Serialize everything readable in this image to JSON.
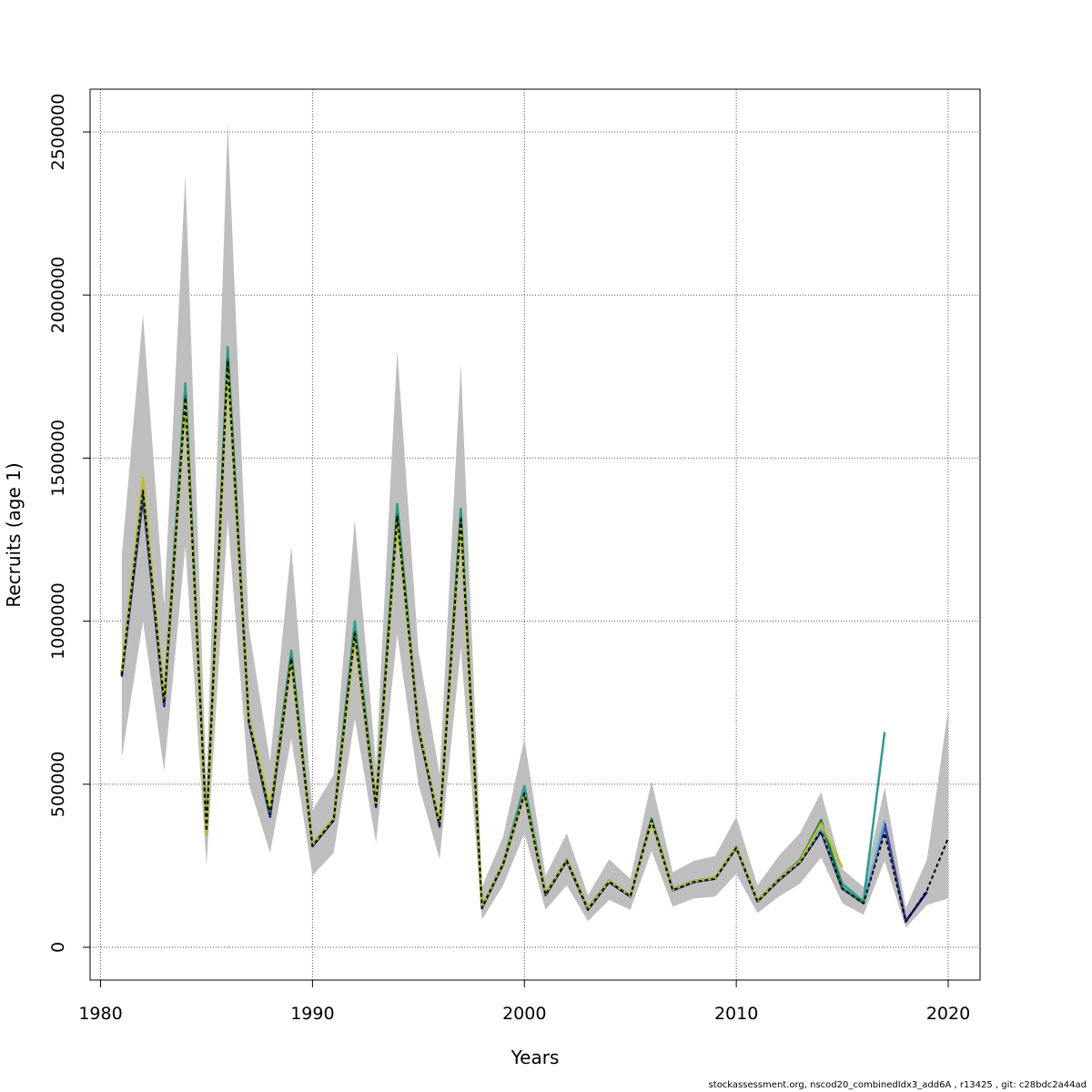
{
  "chart_data": {
    "type": "line",
    "title": "",
    "xlabel": "Years",
    "ylabel": "Recruits (age 1)",
    "xlim": [
      1980,
      2020
    ],
    "ylim": [
      0,
      2500000
    ],
    "xticks": [
      1980,
      1990,
      2000,
      2010,
      2020
    ],
    "yticks": [
      0,
      500000,
      1000000,
      1500000,
      2000000,
      2500000
    ],
    "grid": true,
    "footnote": "stockassessment.org, nscod20_combinedIdx3_add6A , r13425 , git: c28bdc2a44ad",
    "band": {
      "color": "#bebebe",
      "x": [
        1981,
        1982,
        1983,
        1984,
        1985,
        1986,
        1987,
        1988,
        1989,
        1990,
        1991,
        1992,
        1993,
        1994,
        1995,
        1996,
        1997,
        1998,
        1999,
        2000,
        2001,
        2002,
        2003,
        2004,
        2005,
        2006,
        2007,
        2008,
        2009,
        2010,
        2011,
        2012,
        2013,
        2014,
        2015,
        2016,
        2017,
        2018,
        2019,
        2020
      ],
      "lower": [
        580000,
        1000000,
        540000,
        1230000,
        250000,
        1310000,
        500000,
        290000,
        640000,
        220000,
        290000,
        700000,
        320000,
        960000,
        500000,
        270000,
        920000,
        85000,
        190000,
        350000,
        115000,
        190000,
        80000,
        145000,
        115000,
        295000,
        125000,
        150000,
        155000,
        225000,
        105000,
        155000,
        195000,
        275000,
        135000,
        100000,
        265000,
        60000,
        130000,
        150000
      ],
      "upper": [
        1200000,
        1940000,
        1050000,
        2370000,
        500000,
        2530000,
        980000,
        570000,
        1230000,
        420000,
        530000,
        1310000,
        560000,
        1830000,
        910000,
        530000,
        1790000,
        185000,
        340000,
        640000,
        220000,
        350000,
        160000,
        270000,
        210000,
        510000,
        230000,
        265000,
        280000,
        400000,
        190000,
        280000,
        350000,
        475000,
        240000,
        185000,
        490000,
        120000,
        270000,
        730000
      ]
    },
    "series": [
      {
        "color": "#0d0887",
        "dashed": false,
        "x": [
          1981,
          1982,
          1983,
          1984,
          1985,
          1986,
          1987,
          1988,
          1989,
          1990,
          1991,
          1992,
          1993,
          1994,
          1995,
          1996,
          1997,
          1998,
          1999,
          2000,
          2001,
          2002,
          2003,
          2004,
          2005,
          2006,
          2007,
          2008,
          2009,
          2010,
          2011,
          2012,
          2013,
          2014,
          2015,
          2016,
          2017,
          2018,
          2019
        ],
        "values": [
          830000,
          1380000,
          740000,
          1680000,
          360000,
          1790000,
          690000,
          400000,
          880000,
          310000,
          390000,
          960000,
          430000,
          1320000,
          670000,
          370000,
          1310000,
          120000,
          255000,
          470000,
          160000,
          265000,
          115000,
          200000,
          155000,
          390000,
          175000,
          200000,
          210000,
          305000,
          140000,
          205000,
          260000,
          355000,
          180000,
          135000,
          380000,
          80000,
          170000
        ]
      },
      {
        "color": "#3b4ca8",
        "dashed": false,
        "x": [
          1981,
          1982,
          1983,
          1984,
          1985,
          1986,
          1987,
          1988,
          1989,
          1990,
          1991,
          1992,
          1993,
          1994,
          1995,
          1996,
          1997,
          1998,
          1999,
          2000,
          2001,
          2002,
          2003,
          2004,
          2005,
          2006,
          2007,
          2008,
          2009,
          2010,
          2011,
          2012,
          2013,
          2014,
          2015,
          2016,
          2017,
          2018
        ],
        "values": [
          835000,
          1395000,
          745000,
          1690000,
          362000,
          1800000,
          695000,
          405000,
          885000,
          312000,
          392000,
          965000,
          432000,
          1325000,
          672000,
          372000,
          1315000,
          122000,
          257000,
          472000,
          162000,
          267000,
          117000,
          202000,
          156000,
          392000,
          176000,
          201000,
          211000,
          307000,
          141000,
          207000,
          262000,
          360000,
          182000,
          136000,
          372000,
          82000
        ]
      },
      {
        "color": "#6baed6",
        "dashed": false,
        "x": [
          1981,
          1982,
          1983,
          1984,
          1985,
          1986,
          1987,
          1988,
          1989,
          1990,
          1991,
          1992,
          1993,
          1994,
          1995,
          1996,
          1997,
          1998,
          1999,
          2000,
          2001,
          2002,
          2003,
          2004,
          2005,
          2006,
          2007,
          2008,
          2009,
          2010,
          2011,
          2012,
          2013,
          2014,
          2015,
          2016,
          2017
        ],
        "values": [
          840000,
          1410000,
          752000,
          1700000,
          350000,
          1810000,
          700000,
          410000,
          890000,
          314000,
          394000,
          970000,
          436000,
          1330000,
          675000,
          374000,
          1320000,
          123000,
          258000,
          475000,
          163000,
          268000,
          118000,
          203000,
          157000,
          393000,
          177000,
          202000,
          212000,
          308000,
          142000,
          208000,
          263000,
          365000,
          185000,
          140000,
          390000
        ]
      },
      {
        "color": "#2a9d8f",
        "dashed": false,
        "x": [
          1981,
          1982,
          1983,
          1984,
          1985,
          1986,
          1987,
          1988,
          1989,
          1990,
          1991,
          1992,
          1993,
          1994,
          1995,
          1996,
          1997,
          1998,
          1999,
          2000,
          2001,
          2002,
          2003,
          2004,
          2005,
          2006,
          2007,
          2008,
          2009,
          2010,
          2011,
          2012,
          2013,
          2014,
          2015,
          2016,
          2017
        ],
        "values": [
          845000,
          1430000,
          760000,
          1730000,
          355000,
          1840000,
          705000,
          420000,
          910000,
          316000,
          396000,
          1000000,
          445000,
          1360000,
          680000,
          378000,
          1345000,
          125000,
          260000,
          495000,
          165000,
          270000,
          120000,
          205000,
          158000,
          395000,
          178000,
          203000,
          213000,
          310000,
          143000,
          210000,
          268000,
          385000,
          195000,
          140000,
          660000
        ]
      },
      {
        "color": "#1a7a3a",
        "dashed": false,
        "x": [
          1981,
          1982,
          1983,
          1984,
          1985,
          1986,
          1987,
          1988,
          1989,
          1990,
          1991,
          1992,
          1993,
          1994,
          1995,
          1996,
          1997,
          1998,
          1999,
          2000,
          2001,
          2002,
          2003,
          2004,
          2005,
          2006,
          2007,
          2008,
          2009,
          2010,
          2011,
          2012,
          2013,
          2014,
          2015,
          2016
        ],
        "values": [
          838000,
          1420000,
          755000,
          1690000,
          358000,
          1805000,
          698000,
          412000,
          887000,
          313000,
          393000,
          968000,
          437000,
          1328000,
          673000,
          375000,
          1318000,
          122000,
          258000,
          473000,
          163000,
          268000,
          117000,
          203000,
          157000,
          391000,
          177000,
          202000,
          212000,
          307000,
          142000,
          208000,
          265000,
          390000,
          180000,
          135000
        ]
      },
      {
        "color": "#bcbd22",
        "dashed": false,
        "x": [
          1981,
          1982,
          1983,
          1984,
          1985,
          1986,
          1987,
          1988,
          1989,
          1990,
          1991,
          1992,
          1993,
          1994,
          1995,
          1996,
          1997,
          1998,
          1999,
          2000,
          2001,
          2002,
          2003,
          2004,
          2005,
          2006,
          2007,
          2008,
          2009,
          2010,
          2011,
          2012,
          2013,
          2014,
          2015
        ],
        "values": [
          842000,
          1440000,
          758000,
          1670000,
          345000,
          1770000,
          702000,
          430000,
          870000,
          315000,
          395000,
          950000,
          440000,
          1300000,
          678000,
          380000,
          1295000,
          124000,
          259000,
          470000,
          164000,
          269000,
          118000,
          204000,
          157000,
          385000,
          177000,
          202000,
          212000,
          309000,
          142000,
          209000,
          264000,
          380000,
          245000
        ]
      },
      {
        "color": "#000000",
        "dashed": true,
        "x": [
          1981,
          1982,
          1983,
          1984,
          1985,
          1986,
          1987,
          1988,
          1989,
          1990,
          1991,
          1992,
          1993,
          1994,
          1995,
          1996,
          1997,
          1998,
          1999,
          2000,
          2001,
          2002,
          2003,
          2004,
          2005,
          2006,
          2007,
          2008,
          2009,
          2010,
          2011,
          2012,
          2013,
          2014,
          2015,
          2016,
          2017,
          2018,
          2019,
          2020
        ],
        "values": [
          836000,
          1400000,
          748000,
          1685000,
          357000,
          1798000,
          693000,
          408000,
          884000,
          311000,
          391000,
          962000,
          434000,
          1322000,
          671000,
          373000,
          1312000,
          121000,
          256000,
          471000,
          161000,
          266000,
          116000,
          201000,
          156000,
          389000,
          175000,
          200000,
          210000,
          305000,
          140000,
          206000,
          259000,
          356000,
          180000,
          135000,
          350000,
          78000,
          175000,
          335000
        ]
      }
    ]
  }
}
